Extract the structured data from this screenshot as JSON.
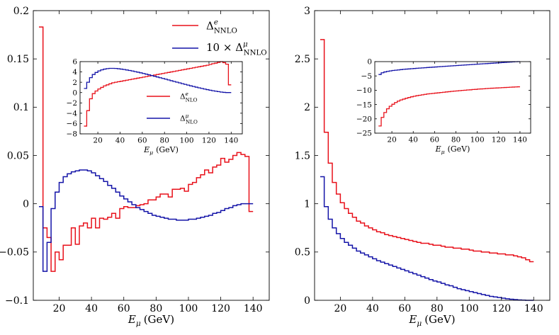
{
  "colors": {
    "red": "#e8101a",
    "blue": "#1414a8"
  },
  "chart_data": [
    {
      "id": "left_main",
      "type": "line",
      "step": true,
      "title": "",
      "xlabel_var": "E",
      "xlabel_sub": "μ",
      "xlabel_unit": "(GeV)",
      "xlim": [
        4,
        150
      ],
      "ylim": [
        -0.1,
        0.2
      ],
      "x_ticks": [
        20,
        40,
        60,
        80,
        100,
        120,
        140
      ],
      "x_tick_labels": [
        "20",
        "40",
        "60",
        "80",
        "100",
        "120",
        "140"
      ],
      "y_ticks": [
        -0.1,
        -0.05,
        0,
        0.05,
        0.1,
        0.15,
        0.2
      ],
      "y_tick_labels": [
        "−0.1",
        "−0.05",
        "0",
        "0.05",
        "0.1",
        "0.15",
        "0.2"
      ],
      "legend_position": "top-right",
      "legend": [
        {
          "prefix": "",
          "delta": "Δ",
          "sup": "e",
          "sub": "NNLO",
          "color": "red"
        },
        {
          "prefix": "10 × ",
          "delta": "Δ",
          "sup": "μ",
          "sub": "NNLO",
          "color": "blue"
        }
      ],
      "bin_edges_start": 7.5,
      "bin_width": 2.5,
      "series": [
        {
          "name": "Δe NNLO",
          "color": "red",
          "values": [
            0.183,
            -0.025,
            -0.035,
            -0.07,
            -0.05,
            -0.058,
            -0.043,
            -0.043,
            -0.025,
            -0.042,
            -0.023,
            -0.02,
            -0.025,
            -0.015,
            -0.025,
            -0.015,
            -0.016,
            -0.014,
            -0.01,
            -0.015,
            -0.005,
            -0.003,
            -0.004,
            -0.004,
            -0.002,
            -0.001,
            0.0,
            0.004,
            0.004,
            0.007,
            0.01,
            0.01,
            0.007,
            0.015,
            0.015,
            0.016,
            0.013,
            0.02,
            0.022,
            0.027,
            0.03,
            0.035,
            0.032,
            0.038,
            0.04,
            0.047,
            0.043,
            0.046,
            0.05,
            0.053,
            0.051,
            0.049,
            -0.008
          ]
        },
        {
          "name": "10 × Δμ NNLO",
          "color": "blue",
          "values": [
            -0.003,
            -0.07,
            -0.04,
            -0.005,
            0.012,
            0.022,
            0.028,
            0.031,
            0.033,
            0.034,
            0.035,
            0.035,
            0.034,
            0.032,
            0.029,
            0.026,
            0.023,
            0.019,
            0.016,
            0.012,
            0.008,
            0.005,
            0.002,
            -0.001,
            -0.004,
            -0.006,
            -0.008,
            -0.01,
            -0.012,
            -0.013,
            -0.014,
            -0.015,
            -0.016,
            -0.016,
            -0.017,
            -0.017,
            -0.017,
            -0.016,
            -0.016,
            -0.015,
            -0.014,
            -0.013,
            -0.012,
            -0.01,
            -0.009,
            -0.007,
            -0.005,
            -0.004,
            -0.002,
            -0.001,
            0.0,
            0.0,
            0.0
          ]
        }
      ]
    },
    {
      "id": "left_inset",
      "type": "line",
      "step": true,
      "xlabel_var": "E",
      "xlabel_sub": "μ",
      "xlabel_unit": "(GeV)",
      "xlim": [
        4,
        150
      ],
      "ylim": [
        -8,
        6
      ],
      "x_ticks": [
        20,
        40,
        60,
        80,
        100,
        120,
        140
      ],
      "x_tick_labels": [
        "20",
        "40",
        "60",
        "80",
        "100",
        "120",
        "140"
      ],
      "y_ticks": [
        -8,
        -6,
        -4,
        -2,
        0,
        2,
        4,
        6
      ],
      "y_tick_labels": [
        "−8",
        "−6",
        "−4",
        "−2",
        "0",
        "2",
        "4",
        "6"
      ],
      "legend": [
        {
          "prefix": "",
          "delta": "Δ",
          "sup": "e",
          "sub": "NLO",
          "color": "red"
        },
        {
          "prefix": "",
          "delta": "Δ",
          "sup": "μ",
          "sub": "NLO",
          "color": "blue"
        }
      ],
      "bin_edges_start": 7.5,
      "bin_width": 2.5,
      "series": [
        {
          "name": "Δe NLO",
          "color": "red",
          "values": [
            -6.5,
            -3.5,
            -1.2,
            -0.2,
            0.3,
            0.7,
            1.0,
            1.3,
            1.5,
            1.7,
            1.9,
            2.0,
            2.1,
            2.2,
            2.3,
            2.4,
            2.5,
            2.6,
            2.7,
            2.8,
            2.9,
            3.0,
            3.1,
            3.2,
            3.3,
            3.4,
            3.5,
            3.6,
            3.7,
            3.8,
            3.9,
            4.0,
            4.1,
            4.2,
            4.3,
            4.4,
            4.5,
            4.6,
            4.7,
            4.8,
            4.9,
            5.0,
            5.1,
            5.2,
            5.3,
            5.45,
            5.6,
            5.7,
            5.85,
            6.0,
            5.8,
            5.5,
            1.5
          ]
        },
        {
          "name": "Δμ NLO",
          "color": "blue",
          "values": [
            0.8,
            2.0,
            2.9,
            3.5,
            3.9,
            4.2,
            4.4,
            4.55,
            4.65,
            4.7,
            4.7,
            4.68,
            4.62,
            4.55,
            4.47,
            4.38,
            4.28,
            4.18,
            4.06,
            3.95,
            3.83,
            3.7,
            3.57,
            3.44,
            3.3,
            3.16,
            3.02,
            2.88,
            2.74,
            2.6,
            2.45,
            2.3,
            2.16,
            2.02,
            1.88,
            1.73,
            1.59,
            1.45,
            1.31,
            1.18,
            1.05,
            0.92,
            0.8,
            0.68,
            0.57,
            0.46,
            0.36,
            0.27,
            0.18,
            0.1,
            0.04,
            0.0,
            0.0
          ]
        }
      ]
    },
    {
      "id": "right_main",
      "type": "line",
      "step": true,
      "xlabel_var": "E",
      "xlabel_sub": "μ",
      "xlabel_unit": "(GeV)",
      "xlim": [
        4,
        150
      ],
      "ylim": [
        0,
        3
      ],
      "x_ticks": [
        20,
        40,
        60,
        80,
        100,
        120,
        140
      ],
      "x_tick_labels": [
        "20",
        "40",
        "60",
        "80",
        "100",
        "120",
        "140"
      ],
      "y_ticks": [
        0,
        0.5,
        1,
        1.5,
        2,
        2.5,
        3
      ],
      "y_tick_labels": [
        "0",
        "0.5",
        "1",
        "1.5",
        "2",
        "2.5",
        "3"
      ],
      "bin_edges_start": 7.5,
      "bin_width": 2.5,
      "series": [
        {
          "name": "red",
          "color": "red",
          "values": [
            2.7,
            1.74,
            1.42,
            1.22,
            1.1,
            1.01,
            0.95,
            0.9,
            0.86,
            0.82,
            0.8,
            0.77,
            0.75,
            0.73,
            0.71,
            0.7,
            0.68,
            0.67,
            0.66,
            0.65,
            0.64,
            0.63,
            0.62,
            0.61,
            0.6,
            0.59,
            0.59,
            0.58,
            0.57,
            0.57,
            0.56,
            0.55,
            0.55,
            0.54,
            0.54,
            0.53,
            0.53,
            0.52,
            0.51,
            0.51,
            0.5,
            0.5,
            0.49,
            0.49,
            0.48,
            0.48,
            0.47,
            0.47,
            0.46,
            0.45,
            0.44,
            0.42,
            0.4
          ]
        },
        {
          "name": "blue",
          "color": "blue",
          "values": [
            1.28,
            0.97,
            0.84,
            0.75,
            0.69,
            0.64,
            0.6,
            0.57,
            0.54,
            0.51,
            0.49,
            0.47,
            0.45,
            0.43,
            0.41,
            0.395,
            0.38,
            0.365,
            0.35,
            0.335,
            0.32,
            0.305,
            0.29,
            0.275,
            0.26,
            0.245,
            0.23,
            0.215,
            0.2,
            0.19,
            0.175,
            0.16,
            0.15,
            0.135,
            0.12,
            0.11,
            0.1,
            0.09,
            0.08,
            0.07,
            0.06,
            0.05,
            0.04,
            0.035,
            0.028,
            0.022,
            0.016,
            0.011,
            0.007,
            0.004,
            0.002,
            0.0,
            0.0
          ]
        }
      ]
    },
    {
      "id": "right_inset",
      "type": "line",
      "step": true,
      "xlabel_var": "E",
      "xlabel_sub": "μ",
      "xlabel_unit": "(GeV)",
      "xlim": [
        4,
        150
      ],
      "ylim": [
        -25,
        0
      ],
      "x_ticks": [
        20,
        40,
        60,
        80,
        100,
        120,
        140
      ],
      "x_tick_labels": [
        "20",
        "40",
        "60",
        "80",
        "100",
        "120",
        "140"
      ],
      "y_ticks": [
        -25,
        -20,
        -15,
        -10,
        -5,
        0
      ],
      "y_tick_labels": [
        "−25",
        "−20",
        "−15",
        "−10",
        "−5",
        "0"
      ],
      "bin_edges_start": 7.5,
      "bin_width": 2.5,
      "series": [
        {
          "name": "red",
          "color": "red",
          "values": [
            -22.5,
            -19.5,
            -17.8,
            -16.5,
            -15.6,
            -14.9,
            -14.3,
            -13.8,
            -13.4,
            -13.1,
            -12.8,
            -12.55,
            -12.3,
            -12.1,
            -11.9,
            -11.75,
            -11.6,
            -11.45,
            -11.3,
            -11.2,
            -11.1,
            -11.0,
            -10.9,
            -10.8,
            -10.7,
            -10.6,
            -10.5,
            -10.4,
            -10.3,
            -10.25,
            -10.15,
            -10.05,
            -10.0,
            -9.9,
            -9.85,
            -9.75,
            -9.7,
            -9.6,
            -9.55,
            -9.5,
            -9.4,
            -9.35,
            -9.3,
            -9.25,
            -9.2,
            -9.15,
            -9.1,
            -9.05,
            -9.0,
            -8.95,
            -8.9,
            -8.85,
            -8.8
          ]
        },
        {
          "name": "blue",
          "color": "blue",
          "values": [
            -4.5,
            -3.9,
            -3.6,
            -3.4,
            -3.25,
            -3.1,
            -3.0,
            -2.9,
            -2.8,
            -2.7,
            -2.62,
            -2.55,
            -2.47,
            -2.4,
            -2.33,
            -2.26,
            -2.2,
            -2.13,
            -2.06,
            -2.0,
            -1.93,
            -1.87,
            -1.8,
            -1.74,
            -1.67,
            -1.61,
            -1.55,
            -1.48,
            -1.42,
            -1.36,
            -1.3,
            -1.23,
            -1.17,
            -1.11,
            -1.05,
            -0.99,
            -0.93,
            -0.87,
            -0.81,
            -0.75,
            -0.69,
            -0.63,
            -0.57,
            -0.51,
            -0.45,
            -0.39,
            -0.33,
            -0.27,
            -0.21,
            -0.15,
            -0.09,
            -0.04,
            0.0
          ]
        }
      ]
    }
  ]
}
